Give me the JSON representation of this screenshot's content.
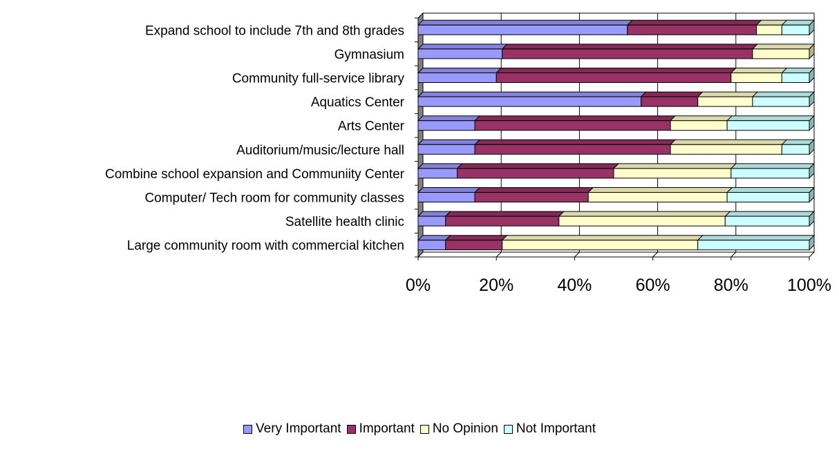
{
  "chart_data": {
    "type": "bar",
    "orientation": "horizontal",
    "stacked": "percent",
    "categories": [
      "Expand school to include 7th and 8th grades",
      "Gymnasium",
      "Community full-service library",
      "Aquatics Center",
      "Arts Center",
      "Auditorium/music/lecture hall",
      "Combine  school expansion and Communiity Center",
      "Computer/ Tech room for community classes",
      "Satellite health clinic",
      "Large community room with commercial kitchen"
    ],
    "series": [
      {
        "name": "Very Important",
        "color": "#9999FF",
        "values": [
          53.5,
          21.5,
          20,
          57,
          14.5,
          14.5,
          10,
          14.5,
          7,
          7
        ]
      },
      {
        "name": "Important",
        "color": "#993366",
        "values": [
          33,
          64,
          60,
          14.5,
          50,
          50,
          40,
          29,
          29,
          14.5
        ]
      },
      {
        "name": "No Opinion",
        "color": "#FFFFCC",
        "values": [
          6.5,
          14.5,
          13,
          14,
          14.5,
          28.5,
          30,
          35.5,
          42.5,
          50
        ]
      },
      {
        "name": "Not Important",
        "color": "#CCFFFF",
        "values": [
          7,
          0,
          7,
          14.5,
          21,
          7,
          20,
          21,
          21.5,
          28.5
        ]
      }
    ],
    "xticks": [
      "0%",
      "20%",
      "40%",
      "60%",
      "80%",
      "100%"
    ],
    "xlim": [
      0,
      100
    ],
    "grid": true,
    "legend_position": "bottom"
  }
}
